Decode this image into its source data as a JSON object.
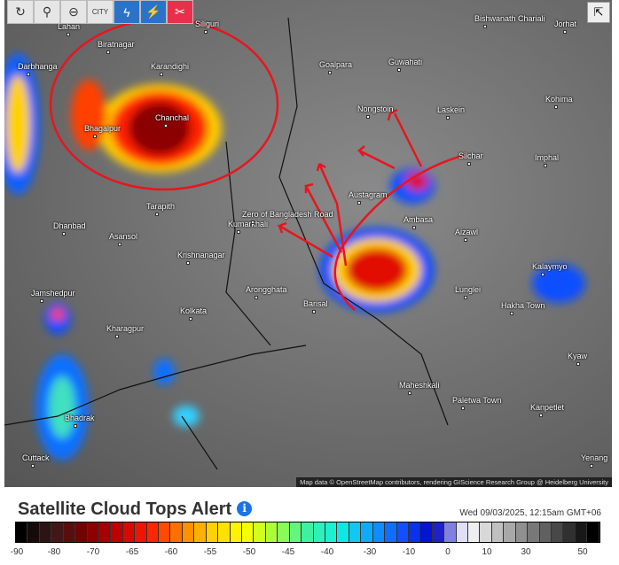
{
  "toolbar": {
    "buttons": [
      {
        "name": "refresh-button",
        "icon": "↻"
      },
      {
        "name": "location-button",
        "icon": "⚲"
      },
      {
        "name": "zoom-out-button",
        "icon": "⊖"
      },
      {
        "name": "city-toggle-button",
        "icon": "CITY"
      },
      {
        "name": "lightning-button",
        "icon": "ϟ"
      },
      {
        "name": "lightning-strike-button",
        "icon": "⚡"
      },
      {
        "name": "satellite-button",
        "icon": "✂"
      }
    ],
    "share_icon": "⇱"
  },
  "map": {
    "labels": [
      "Lahan",
      "Biratnagar",
      "Siliguri",
      "Darbhanga",
      "Karandighi",
      "Bhagalpur",
      "Chanchal",
      "Goalpara",
      "Guwahati",
      "Bishwanath Chariali",
      "Jorhat",
      "Kohima",
      "Nongstoin",
      "Laskein",
      "Silchar",
      "Imphal",
      "Tarapith",
      "Dhanbad",
      "Asansol",
      "Kumarkhali",
      "Zero of Bangladesh Road",
      "Austagram",
      "Ambasa",
      "Aizawl",
      "Krishnanagar",
      "Kalaymyo",
      "Jamshedpur",
      "Arongghata",
      "Kolkata",
      "Lunglei",
      "Hakha Town",
      "Kharagpur",
      "Barisal",
      "Kyaw",
      "Maheshkali",
      "Paletwa Town",
      "Kanpetlet",
      "Bhadrak",
      "Cuttack",
      "Yenang"
    ],
    "attribution": "Map data © OpenStreetMap contributors, rendering GIScience Research Group @ Heidelberg University"
  },
  "legend": {
    "title": "Satellite Cloud Tops Alert",
    "info_icon": "i",
    "timestamp": "Wed 09/03/2025, 12:15am GMT+06",
    "ticks": [
      "-90",
      "-80",
      "-70",
      "-65",
      "-60",
      "-55",
      "-50",
      "-45",
      "-40",
      "-30",
      "-10",
      "0",
      "10",
      "30",
      "50"
    ],
    "color_stops": [
      "#000000",
      "#3a1a1a",
      "#7a0000",
      "#c00000",
      "#ff1a00",
      "#ff7a00",
      "#ffd000",
      "#ffff00",
      "#a0ff40",
      "#40f0a0",
      "#10f0e0",
      "#10a0ff",
      "#1050ff",
      "#0000c0",
      "#ffffff",
      "#c0c0c0",
      "#808080",
      "#404040",
      "#000000"
    ]
  },
  "colors": {
    "annotation": "#e8151e",
    "storm_core": "#b00000"
  }
}
